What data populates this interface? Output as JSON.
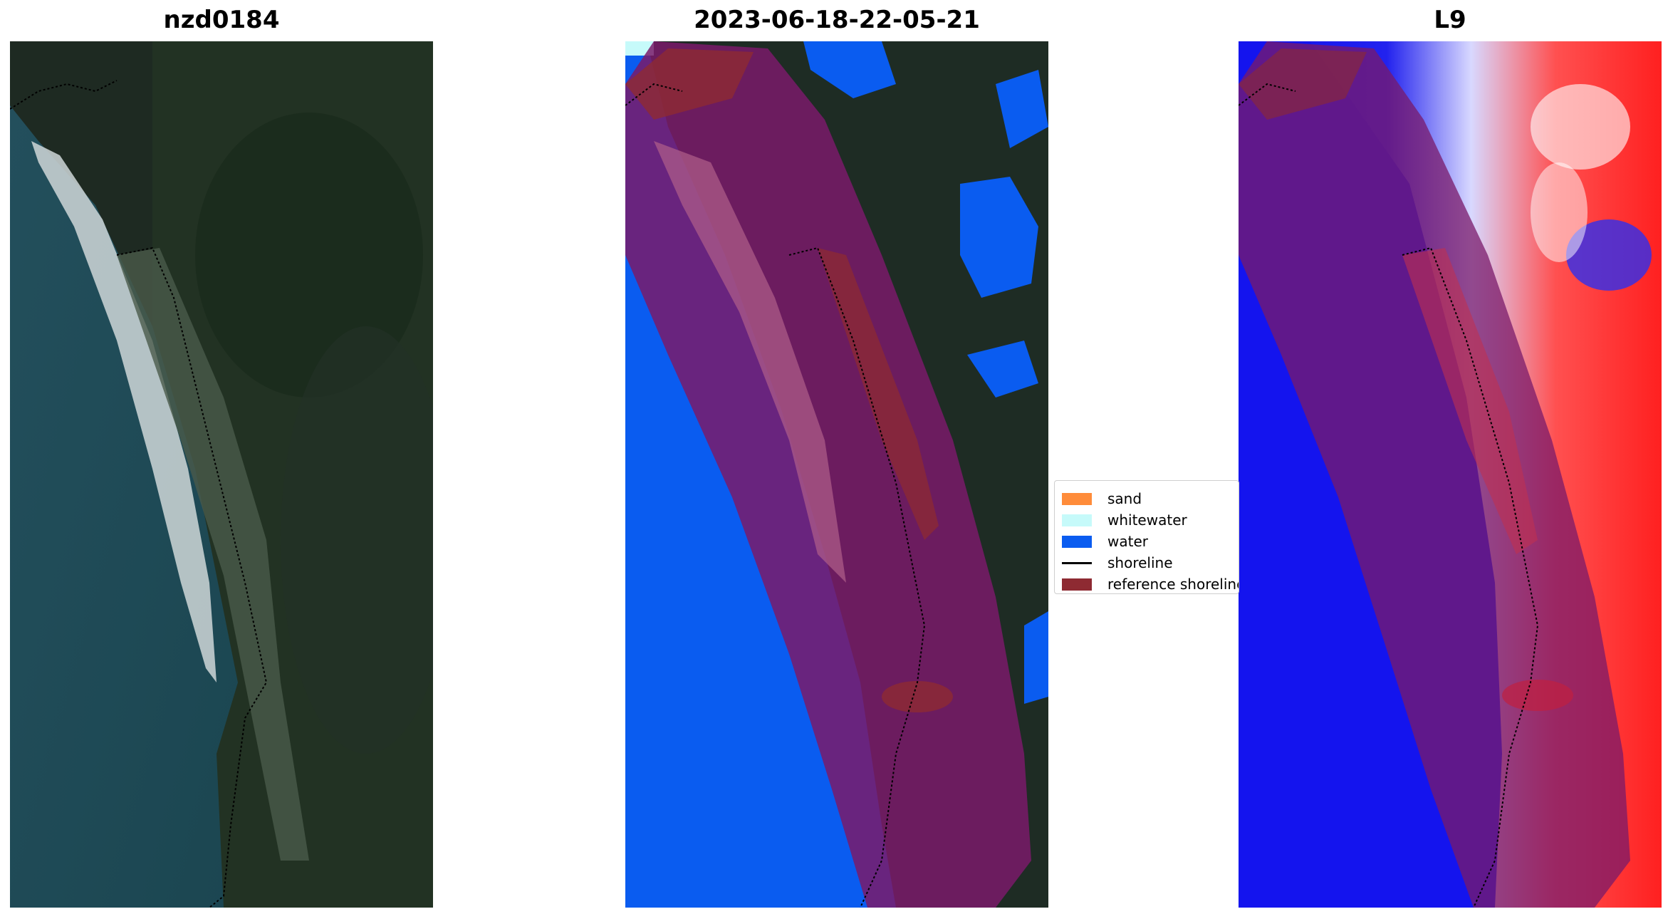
{
  "panels": [
    {
      "title": "nzd0184"
    },
    {
      "title": "2023-06-18-22-05-21"
    },
    {
      "title": "L9"
    }
  ],
  "legend": {
    "items": [
      {
        "label": "sand",
        "kind": "patch",
        "color": "#ff8c3a"
      },
      {
        "label": "whitewater",
        "kind": "patch",
        "color": "#c6fafa"
      },
      {
        "label": "water",
        "kind": "patch",
        "color": "#0a5cf0"
      },
      {
        "label": "shoreline",
        "kind": "line",
        "color": "#000000"
      },
      {
        "label": "reference shoreline",
        "kind": "patch",
        "color": "#8e2a32"
      }
    ]
  },
  "colors": {
    "ocean": "#1f4e5a",
    "land": "#1d2c20",
    "water_class": "#0a5cf0",
    "buffer_overlay": "#7a1a6a",
    "reference_shoreline": "#8e2a32",
    "index_positive": "#ff2020",
    "index_negative": "#1010ee"
  }
}
